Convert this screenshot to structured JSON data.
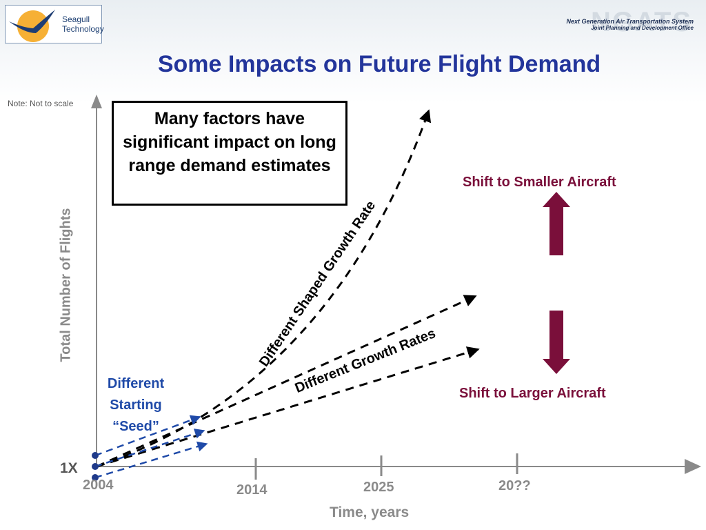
{
  "header": {
    "logo_line1": "Seagull",
    "logo_line2": "Technology",
    "caption_line1": "Next Generation Air Transportation System",
    "caption_line2": "Joint Planning and Development Office",
    "watermark": "NGATS"
  },
  "title": "Some Impacts on Future Flight Demand",
  "note": "Note: Not to scale",
  "y_axis_label": "Total Number of Flights",
  "x_axis_label": "Time, years",
  "baseline_label": "1X",
  "x_ticks": [
    "2004",
    "2014",
    "2025",
    "20??"
  ],
  "callout": "Many factors have significant impact on long range demand estimates",
  "labels": {
    "shaped_growth": "Different Shaped Growth Rate",
    "growth_rates": "Different Growth Rates",
    "shift_smaller": "Shift to Smaller Aircraft",
    "shift_larger": "Shift to Larger Aircraft",
    "seed_line1": "Different",
    "seed_line2": "Starting",
    "seed_line3": "“Seed”"
  },
  "colors": {
    "title": "#23359b",
    "axis": "#8a8a8a",
    "seed": "#1f4aa8",
    "shift": "#7a0f3a",
    "dashes": "#000000"
  }
}
